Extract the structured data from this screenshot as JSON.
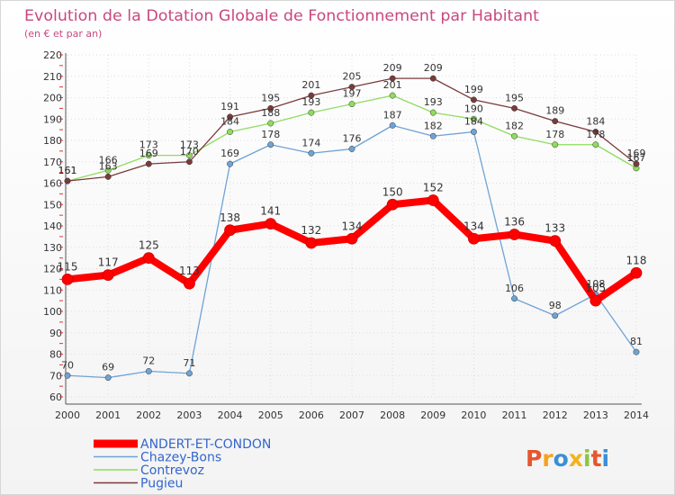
{
  "chart_data": {
    "type": "line",
    "title": "Evolution de la Dotation Globale de Fonctionnement par Habitant",
    "subtitle": "(en € et par an)",
    "categories": [
      "2000",
      "2001",
      "2002",
      "2003",
      "2004",
      "2005",
      "2006",
      "2007",
      "2008",
      "2009",
      "2010",
      "2011",
      "2012",
      "2013",
      "2014"
    ],
    "ylim": [
      60,
      220
    ],
    "yticks": [
      60,
      70,
      80,
      90,
      100,
      110,
      120,
      130,
      140,
      150,
      160,
      170,
      180,
      190,
      200,
      210,
      220
    ],
    "grid": true,
    "legend_position": "bottom-left",
    "series": [
      {
        "name": "ANDERT-ET-CONDON",
        "color": "#ff0000",
        "values": [
          115,
          117,
          125,
          113,
          138,
          141,
          132,
          134,
          150,
          152,
          134,
          136,
          133,
          105,
          118
        ]
      },
      {
        "name": "Chazey-Bons",
        "color": "#6fa3d6",
        "values": [
          70,
          69,
          72,
          71,
          169,
          178,
          174,
          176,
          187,
          182,
          184,
          106,
          98,
          108,
          81
        ]
      },
      {
        "name": "Contrevoz",
        "color": "#8fdc5e",
        "values": [
          161,
          166,
          173,
          173,
          184,
          188,
          193,
          197,
          201,
          193,
          190,
          182,
          178,
          178,
          167
        ]
      },
      {
        "name": "Pugieu",
        "color": "#7a3b3b",
        "values": [
          161,
          163,
          169,
          170,
          191,
          195,
          201,
          205,
          209,
          209,
          199,
          195,
          189,
          184,
          169
        ]
      }
    ]
  },
  "logo": {
    "text": "Proxiti"
  }
}
